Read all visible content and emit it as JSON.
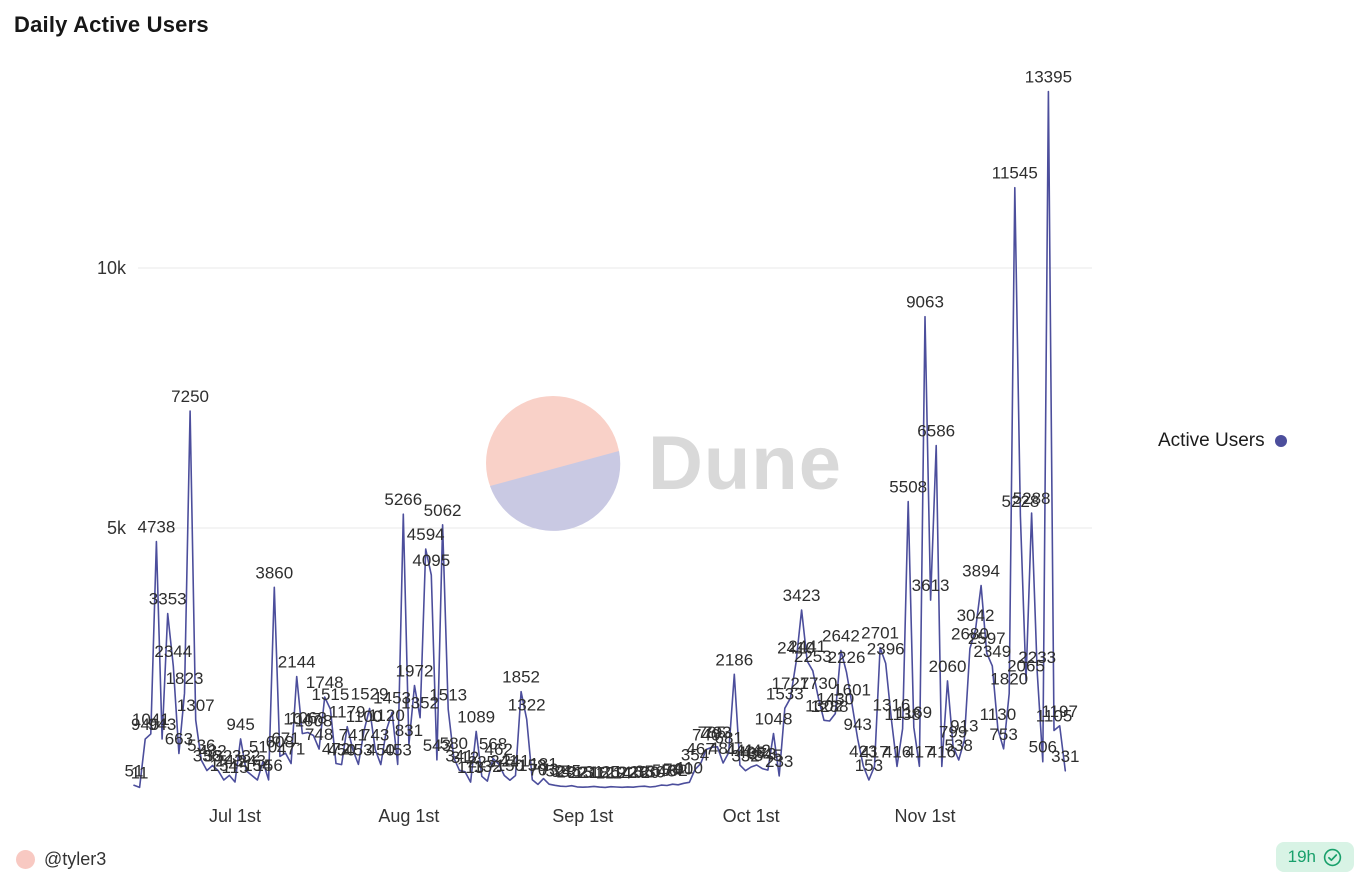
{
  "page": {
    "title": "Daily Active Users"
  },
  "legend": {
    "label": "Active Users"
  },
  "watermark": {
    "text": "Dune"
  },
  "footer": {
    "author": "@tyler3",
    "freshness": "19h"
  },
  "colors": {
    "series": "#4c4e9c",
    "label_text": "#2e2e2e",
    "grid": "#e8e8e8",
    "axis_text": "#333333",
    "watermark_text": "#d9d9d9",
    "watermark_pink": "#f9d1c8",
    "watermark_lavender": "#c9c9e3",
    "author_dot": "#f8c9c2",
    "badge_bg": "#d8f3e5",
    "badge_text": "#18a06b"
  },
  "chart_data": {
    "type": "line",
    "title": "Daily Active Users",
    "legend_entries": [
      "Active Users"
    ],
    "legend_position": "right",
    "grid": "horizontal",
    "point_labels": "all",
    "ylim": [
      0,
      14000
    ],
    "y_ticks": [
      {
        "value": 5000,
        "label": "5k"
      },
      {
        "value": 10000,
        "label": "10k"
      }
    ],
    "x_ticks": [
      {
        "index": 18,
        "label": "Jul 1st"
      },
      {
        "index": 49,
        "label": "Aug 1st"
      },
      {
        "index": 80,
        "label": "Sep 1st"
      },
      {
        "index": 110,
        "label": "Oct 1st"
      },
      {
        "index": 141,
        "label": "Nov 1st"
      }
    ],
    "series": [
      {
        "name": "Active Users",
        "color": "#4c4e9c",
        "values": [
          51,
          11,
          940,
          1041,
          4738,
          943,
          3353,
          2344,
          663,
          1823,
          7250,
          1307,
          536,
          336,
          432,
          332,
          154,
          243,
          115,
          945,
          332,
          243,
          154,
          510,
          156,
          3860,
          608,
          671,
          471,
          2144,
          1047,
          1068,
          1008,
          748,
          1748,
          1515,
          472,
          450,
          1179,
          741,
          453,
          1100,
          1529,
          743,
          450,
          1120,
          1453,
          453,
          5266,
          831,
          1972,
          1352,
          4594,
          4095,
          543,
          5062,
          1513,
          580,
          341,
          312,
          113,
          1089,
          225,
          132,
          568,
          462,
          241,
          150,
          241,
          1852,
          1322,
          158,
          70,
          181,
          73,
          52,
          35,
          28,
          45,
          22,
          15,
          21,
          31,
          18,
          12,
          25,
          19,
          14,
          22,
          16,
          28,
          35,
          20,
          30,
          55,
          48,
          74,
          62,
          90,
          110,
          354,
          467,
          740,
          785,
          793,
          481,
          681,
          2186,
          441,
          332,
          403,
          442,
          373,
          345,
          1048,
          233,
          1533,
          1727,
          2410,
          3423,
          2441,
          2253,
          1730,
          1302,
          1288,
          1430,
          2642,
          2226,
          1601,
          943,
          423,
          153,
          417,
          2701,
          2396,
          1316,
          416,
          1138,
          5508,
          1169,
          417,
          9063,
          3613,
          6586,
          416,
          2060,
          799,
          538,
          913,
          2680,
          3042,
          3894,
          2597,
          2349,
          1130,
          753,
          1820,
          11545,
          5228,
          2065,
          5288,
          2233,
          506,
          13395,
          1105,
          1197,
          331
        ]
      }
    ]
  }
}
